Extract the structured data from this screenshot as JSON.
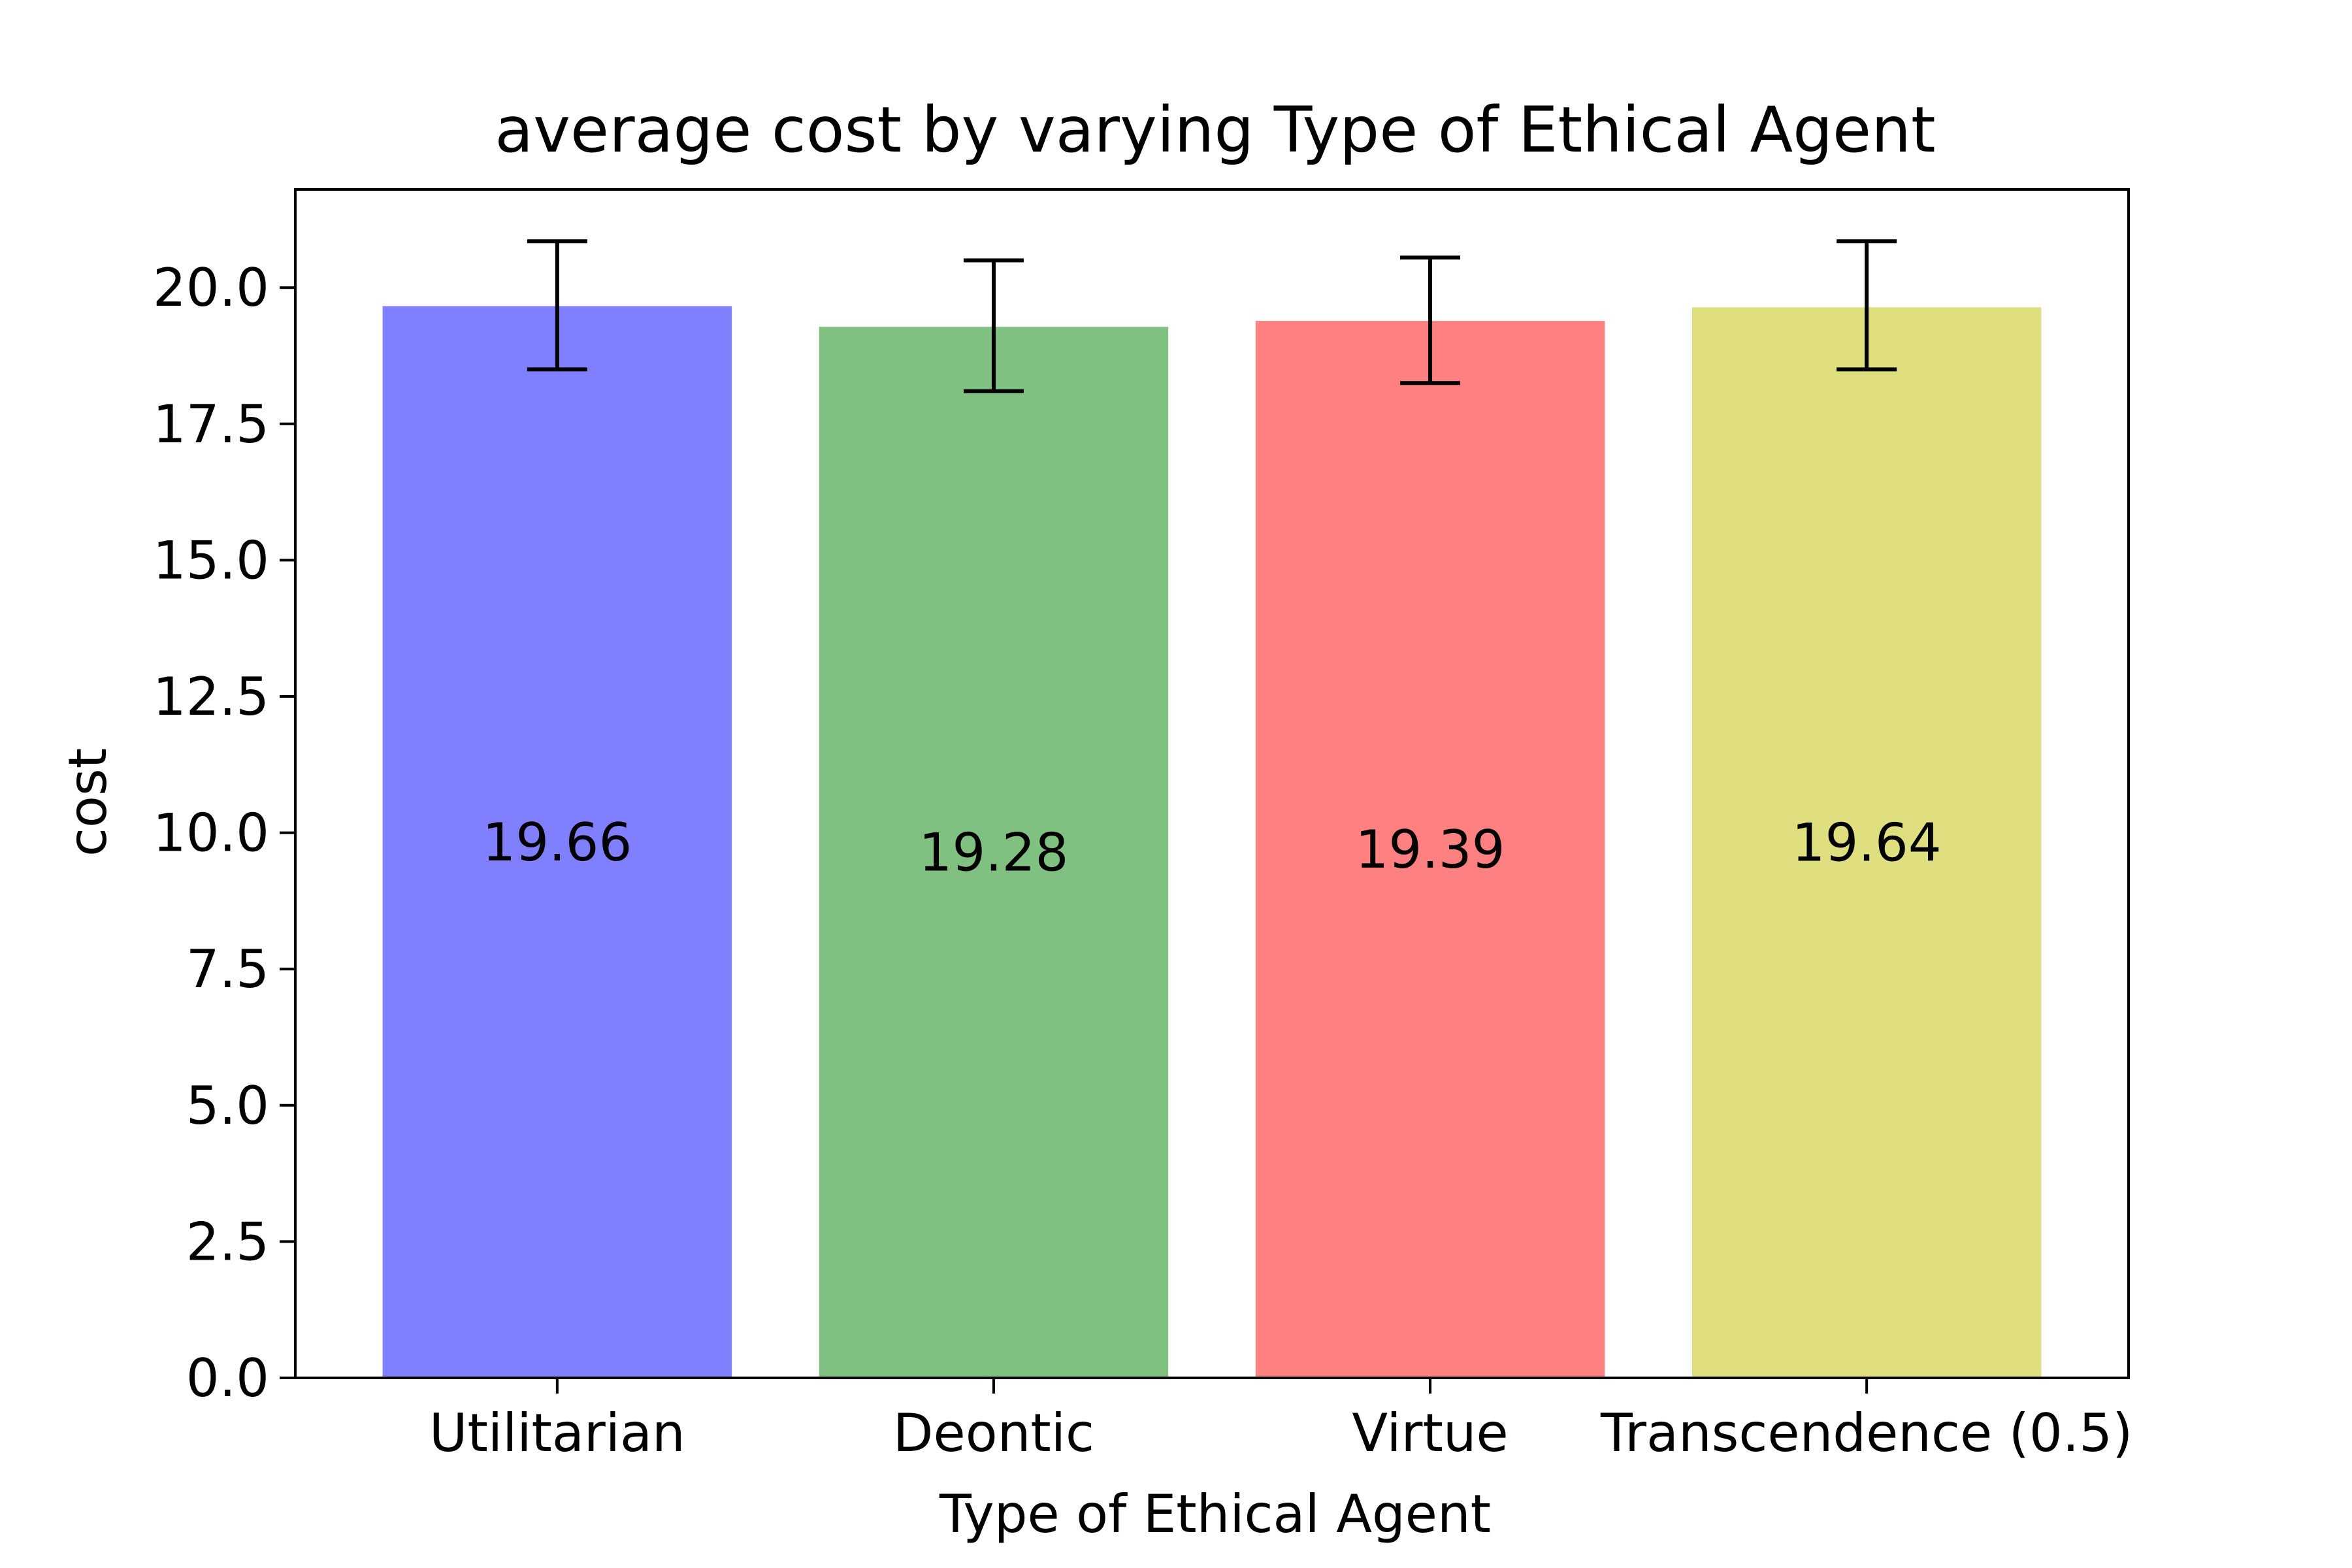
{
  "chart_data": {
    "type": "bar",
    "title": "average cost by varying Type of Ethical Agent",
    "xlabel": "Type of Ethical Agent",
    "ylabel": "cost",
    "categories": [
      "Utilitarian",
      "Deontic",
      "Virtue",
      "Transcendence (0.5)"
    ],
    "values": [
      19.66,
      19.28,
      19.39,
      19.64
    ],
    "value_labels": [
      "19.66",
      "19.28",
      "19.39",
      "19.64"
    ],
    "error_low": [
      18.5,
      18.1,
      18.25,
      18.5
    ],
    "error_high": [
      20.85,
      20.5,
      20.55,
      20.85
    ],
    "colors": [
      "#8080ff",
      "#80c080",
      "#ff8080",
      "#dfdf80"
    ],
    "ylim": [
      0,
      21.8
    ],
    "yticks": [
      0,
      2.5,
      5,
      7.5,
      10,
      12.5,
      15,
      17.5,
      20
    ],
    "ytick_labels": [
      "0.0",
      "2.5",
      "5.0",
      "7.5",
      "10.0",
      "12.5",
      "15.0",
      "17.5",
      "20.0"
    ],
    "grid": false,
    "legend": "none"
  }
}
